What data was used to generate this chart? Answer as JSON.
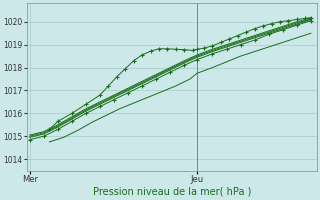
{
  "bg_color": "#cce8e8",
  "grid_color": "#aacccc",
  "line_color": "#1a6e1a",
  "marker_color": "#1a6e1a",
  "axis_label": "Pression niveau de la mer( hPa )",
  "xtick_labels": [
    "Mer",
    "Jeu"
  ],
  "ylim": [
    1013.5,
    1020.8
  ],
  "yticks": [
    1014,
    1015,
    1016,
    1017,
    1018,
    1019,
    1020
  ],
  "vline_x": 0.595,
  "series": [
    {
      "x": [
        0.0,
        0.05,
        0.1,
        0.15,
        0.2,
        0.25,
        0.3,
        0.35,
        0.4,
        0.45,
        0.5,
        0.55,
        0.595,
        0.65,
        0.7,
        0.75,
        0.8,
        0.85,
        0.9,
        0.95,
        1.0
      ],
      "y": [
        1014.85,
        1015.0,
        1015.3,
        1015.65,
        1016.0,
        1016.3,
        1016.6,
        1016.9,
        1017.2,
        1017.5,
        1017.8,
        1018.1,
        1018.35,
        1018.6,
        1018.8,
        1019.0,
        1019.2,
        1019.45,
        1019.65,
        1019.85,
        1020.05
      ],
      "has_markers": true
    },
    {
      "x": [
        0.0,
        0.05,
        0.1,
        0.15,
        0.2,
        0.25,
        0.3,
        0.35,
        0.4,
        0.45,
        0.5,
        0.55,
        0.595,
        0.65,
        0.7,
        0.75,
        0.8,
        0.85,
        0.9,
        0.95,
        1.0
      ],
      "y": [
        1014.95,
        1015.1,
        1015.4,
        1015.75,
        1016.1,
        1016.4,
        1016.7,
        1017.0,
        1017.3,
        1017.6,
        1017.9,
        1018.2,
        1018.45,
        1018.7,
        1018.9,
        1019.1,
        1019.3,
        1019.5,
        1019.7,
        1019.9,
        1020.1
      ],
      "has_markers": false
    },
    {
      "x": [
        0.0,
        0.05,
        0.1,
        0.15,
        0.2,
        0.25,
        0.3,
        0.35,
        0.4,
        0.45,
        0.5,
        0.55,
        0.595,
        0.65,
        0.7,
        0.75,
        0.8,
        0.85,
        0.9,
        0.95,
        1.0
      ],
      "y": [
        1015.0,
        1015.15,
        1015.45,
        1015.8,
        1016.15,
        1016.45,
        1016.75,
        1017.05,
        1017.35,
        1017.65,
        1017.95,
        1018.25,
        1018.5,
        1018.75,
        1018.95,
        1019.15,
        1019.35,
        1019.55,
        1019.75,
        1019.95,
        1020.12
      ],
      "has_markers": false
    },
    {
      "x": [
        0.0,
        0.05,
        0.1,
        0.15,
        0.2,
        0.25,
        0.3,
        0.35,
        0.4,
        0.45,
        0.5,
        0.55,
        0.595,
        0.65,
        0.7,
        0.75,
        0.8,
        0.85,
        0.9,
        0.95,
        1.0
      ],
      "y": [
        1015.05,
        1015.2,
        1015.5,
        1015.85,
        1016.2,
        1016.5,
        1016.8,
        1017.1,
        1017.4,
        1017.7,
        1018.0,
        1018.3,
        1018.55,
        1018.8,
        1019.0,
        1019.2,
        1019.4,
        1019.6,
        1019.8,
        1020.0,
        1020.17
      ],
      "has_markers": false
    },
    {
      "x": [
        0.07,
        0.1,
        0.15,
        0.2,
        0.25,
        0.28,
        0.31,
        0.34,
        0.37,
        0.4,
        0.43,
        0.46,
        0.49,
        0.52,
        0.55,
        0.58,
        0.595,
        0.62,
        0.65,
        0.68,
        0.71,
        0.74,
        0.77,
        0.8,
        0.83,
        0.86,
        0.89,
        0.92,
        0.95,
        0.98,
        1.0
      ],
      "y": [
        1015.3,
        1015.65,
        1016.0,
        1016.4,
        1016.8,
        1017.2,
        1017.6,
        1017.95,
        1018.3,
        1018.55,
        1018.72,
        1018.82,
        1018.82,
        1018.8,
        1018.78,
        1018.75,
        1018.8,
        1018.85,
        1018.95,
        1019.1,
        1019.25,
        1019.4,
        1019.55,
        1019.7,
        1019.82,
        1019.92,
        1020.0,
        1020.05,
        1020.1,
        1020.15,
        1020.18
      ],
      "has_markers": true
    },
    {
      "x": [
        0.07,
        0.12,
        0.17,
        0.22,
        0.27,
        0.32,
        0.37,
        0.42,
        0.47,
        0.52,
        0.57,
        0.595,
        0.65,
        0.7,
        0.75,
        0.8,
        0.85,
        0.9,
        0.95,
        1.0
      ],
      "y": [
        1014.75,
        1014.95,
        1015.25,
        1015.6,
        1015.9,
        1016.2,
        1016.45,
        1016.7,
        1016.95,
        1017.2,
        1017.5,
        1017.75,
        1018.0,
        1018.25,
        1018.5,
        1018.7,
        1018.9,
        1019.1,
        1019.3,
        1019.5
      ],
      "has_markers": false
    }
  ],
  "xtick_mer_x": 0.0,
  "xtick_jeu_x": 0.595
}
